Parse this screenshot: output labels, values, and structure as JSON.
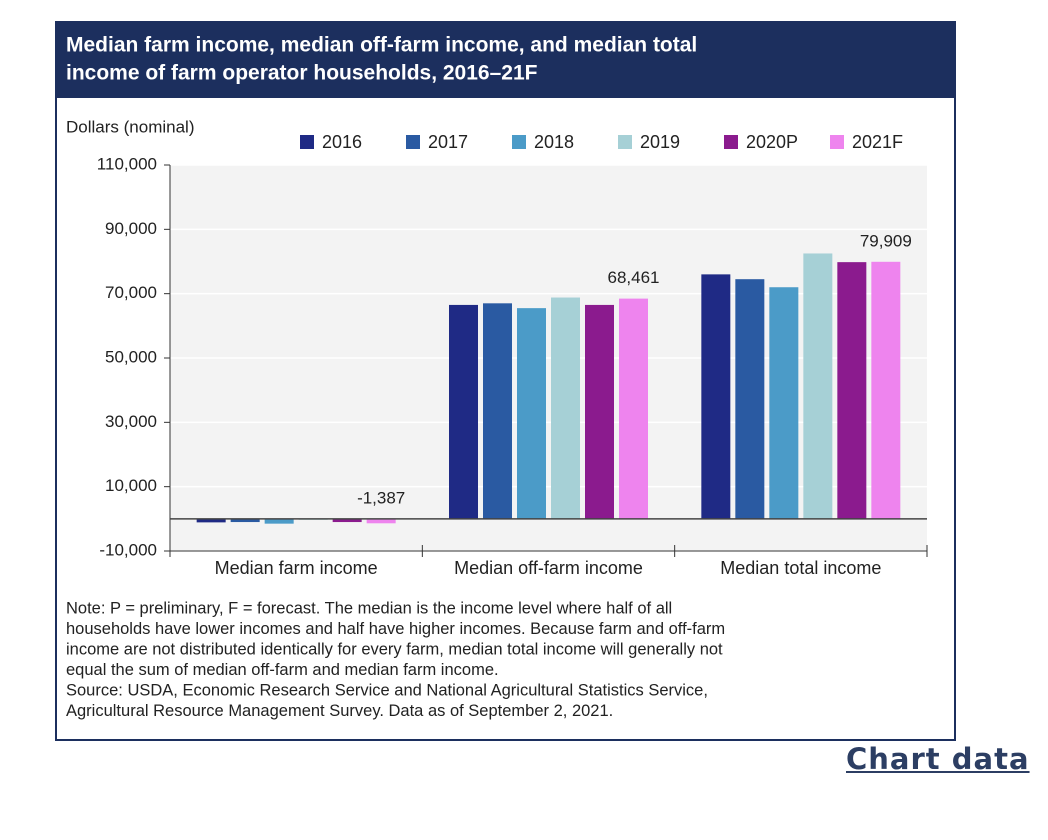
{
  "chart_data": {
    "type": "bar",
    "title_lines": [
      "Median farm income, median off-farm income, and median total",
      "income of farm operator households, 2016–21F"
    ],
    "y_label": "Dollars (nominal)",
    "categories": [
      "Median farm income",
      "Median off-farm income",
      "Median total income"
    ],
    "series": [
      {
        "name": "2016",
        "color": "#1f2a85",
        "values": [
          -1100,
          66500,
          76000
        ]
      },
      {
        "name": "2017",
        "color": "#2a5aa2",
        "values": [
          -1000,
          67000,
          74500
        ]
      },
      {
        "name": "2018",
        "color": "#4b9bc8",
        "values": [
          -1500,
          65500,
          72000
        ]
      },
      {
        "name": "2019",
        "color": "#a6d0d6",
        "values": [
          -300,
          68800,
          82500
        ]
      },
      {
        "name": "2020P",
        "color": "#8b1b8e",
        "values": [
          -1000,
          66500,
          79800
        ]
      },
      {
        "name": "2021F",
        "color": "#ee84ee",
        "values": [
          -1387,
          68461,
          79909
        ],
        "value_labels": [
          "-1,387",
          "68,461",
          "79,909"
        ]
      }
    ],
    "ylim": [
      -10000,
      110000
    ],
    "yticks": [
      {
        "value": -10000,
        "label": "-10,000"
      },
      {
        "value": 10000,
        "label": "10,000"
      },
      {
        "value": 30000,
        "label": "30,000"
      },
      {
        "value": 50000,
        "label": "50,000"
      },
      {
        "value": 70000,
        "label": "70,000"
      },
      {
        "value": 90000,
        "label": "90,000"
      },
      {
        "value": 110000,
        "label": "110,000"
      }
    ],
    "grid": true,
    "notes": [
      "Note: P = preliminary, F = forecast. The median is the income level where half of all",
      "households have lower incomes and half have higher incomes. Because farm and off-farm",
      "income are not distributed identically for every farm, median total income will generally not",
      "equal the sum of median off-farm and median farm income.",
      "Source: USDA, Economic Research Service and National Agricultural Statistics Service,",
      "Agricultural Resource Management Survey. Data as of September 2, 2021."
    ]
  },
  "link": "Chart data"
}
